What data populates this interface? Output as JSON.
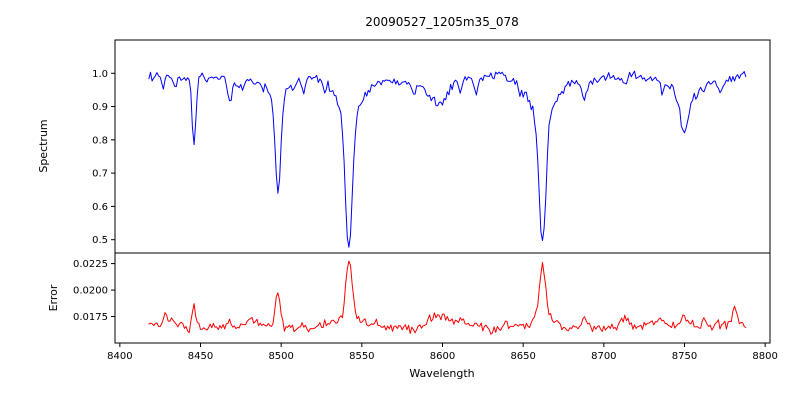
{
  "figure": {
    "background": "#ffffff"
  },
  "chart_data": {
    "type": "line",
    "title": "20090527_1205m35_078",
    "xlabel": "Wavelength",
    "grid": false,
    "x_start": 8418,
    "x_end": 8788,
    "x_step": 1,
    "xlim": [
      8397,
      8803
    ],
    "xticks": [
      8400,
      8450,
      8500,
      8550,
      8600,
      8650,
      8700,
      8750,
      8800
    ],
    "xtick_labels": [
      "8400",
      "8450",
      "8500",
      "8550",
      "8600",
      "8650",
      "8700",
      "8750",
      "8800"
    ],
    "seed": 20090527,
    "panels": [
      {
        "name": "spectrum",
        "ylabel": "Spectrum",
        "color": "#0000ff",
        "ylim": [
          0.46,
          1.1
        ],
        "yticks": [
          0.5,
          0.6,
          0.7,
          0.8,
          0.9,
          1.0
        ],
        "ytick_labels": [
          "0.5",
          "0.6",
          "0.7",
          "0.8",
          "0.9",
          "1.0"
        ],
        "baseline": 0.985,
        "feature_sign": -1,
        "noise_sigma": 0.007,
        "seed_offset": 11,
        "wiggles": [
          {
            "amplitude": 0.007,
            "period": 95,
            "phase": 0.5
          },
          {
            "amplitude": 0.005,
            "period": 37,
            "phase": 2.1
          },
          {
            "amplitude": 0.004,
            "period": 17,
            "phase": 4.2
          }
        ],
        "features": [
          {
            "center": 8427,
            "amplitude": 0.04,
            "width": 1.0
          },
          {
            "center": 8434,
            "amplitude": 0.03,
            "width": 0.9
          },
          {
            "center": 8446,
            "amplitude": 0.19,
            "width": 1.1,
            "wing_amplitude": 0.02,
            "wing_width": 3
          },
          {
            "center": 8468,
            "amplitude": 0.06,
            "width": 1.1
          },
          {
            "center": 8476,
            "amplitude": 0.03,
            "width": 0.9
          },
          {
            "center": 8498,
            "amplitude": 0.29,
            "width": 1.7,
            "wing_amplitude": 0.05,
            "wing_width": 7
          },
          {
            "center": 8514,
            "amplitude": 0.04,
            "width": 1.0
          },
          {
            "center": 8527,
            "amplitude": 0.03,
            "width": 0.9
          },
          {
            "center": 8542,
            "amplitude": 0.41,
            "width": 2.1,
            "wing_amplitude": 0.1,
            "wing_width": 9
          },
          {
            "center": 8582,
            "amplitude": 0.03,
            "width": 0.9
          },
          {
            "center": 8598,
            "amplitude": 0.06,
            "width": 4.5,
            "wing_amplitude": 0.025,
            "wing_width": 11
          },
          {
            "center": 8611,
            "amplitude": 0.03,
            "width": 1.0
          },
          {
            "center": 8621,
            "amplitude": 0.03,
            "width": 1.0
          },
          {
            "center": 8648,
            "amplitude": 0.03,
            "width": 0.9
          },
          {
            "center": 8662,
            "amplitude": 0.4,
            "width": 2.1,
            "wing_amplitude": 0.095,
            "wing_width": 9
          },
          {
            "center": 8688,
            "amplitude": 0.05,
            "width": 1.4
          },
          {
            "center": 8713,
            "amplitude": 0.03,
            "width": 1.0
          },
          {
            "center": 8736,
            "amplitude": 0.035,
            "width": 1.1
          },
          {
            "center": 8750,
            "amplitude": 0.11,
            "width": 2.6,
            "wing_amplitude": 0.055,
            "wing_width": 7
          },
          {
            "center": 8772,
            "amplitude": 0.035,
            "width": 1.0
          }
        ]
      },
      {
        "name": "error",
        "ylabel": "Error",
        "color": "#ff0000",
        "ylim": [
          0.015,
          0.0235
        ],
        "yticks": [
          0.0175,
          0.02,
          0.0225
        ],
        "ytick_labels": [
          "0.0175",
          "0.0200",
          "0.0225"
        ],
        "baseline": 0.0166,
        "feature_sign": 1,
        "noise_sigma": 0.00022,
        "seed_offset": 22,
        "wiggles": [
          {
            "amplitude": 0.0002,
            "period": 60,
            "phase": 1.0
          },
          {
            "amplitude": 0.00015,
            "period": 23,
            "phase": 3.0
          }
        ],
        "features": [
          {
            "center": 8428,
            "amplitude": 0.0008,
            "width": 1.2
          },
          {
            "center": 8432,
            "amplitude": 0.0006,
            "width": 1.0
          },
          {
            "center": 8446,
            "amplitude": 0.0023,
            "width": 1.2
          },
          {
            "center": 8452,
            "amplitude": 0.0005,
            "width": 1.0
          },
          {
            "center": 8468,
            "amplitude": 0.0006,
            "width": 1.2
          },
          {
            "center": 8481,
            "amplitude": 0.0005,
            "width": 1.0
          },
          {
            "center": 8498,
            "amplitude": 0.003,
            "width": 1.5
          },
          {
            "center": 8514,
            "amplitude": 0.0005,
            "width": 1.0
          },
          {
            "center": 8542,
            "amplitude": 0.0052,
            "width": 1.8,
            "wing_amplitude": 0.001,
            "wing_width": 5
          },
          {
            "center": 8560,
            "amplitude": 0.0004,
            "width": 1.5
          },
          {
            "center": 8598,
            "amplitude": 0.0009,
            "width": 5.0
          },
          {
            "center": 8610,
            "amplitude": 0.0005,
            "width": 2.0
          },
          {
            "center": 8640,
            "amplitude": 0.0004,
            "width": 1.5
          },
          {
            "center": 8662,
            "amplitude": 0.0046,
            "width": 1.8,
            "wing_amplitude": 0.0009,
            "wing_width": 5
          },
          {
            "center": 8688,
            "amplitude": 0.0006,
            "width": 1.8
          },
          {
            "center": 8713,
            "amplitude": 0.0004,
            "width": 1.5
          },
          {
            "center": 8736,
            "amplitude": 0.0005,
            "width": 1.5
          },
          {
            "center": 8750,
            "amplitude": 0.0011,
            "width": 3.0
          },
          {
            "center": 8762,
            "amplitude": 0.0005,
            "width": 1.2
          },
          {
            "center": 8770,
            "amplitude": 0.0006,
            "width": 1.0
          },
          {
            "center": 8781,
            "amplitude": 0.0012,
            "width": 1.2
          }
        ]
      }
    ]
  }
}
